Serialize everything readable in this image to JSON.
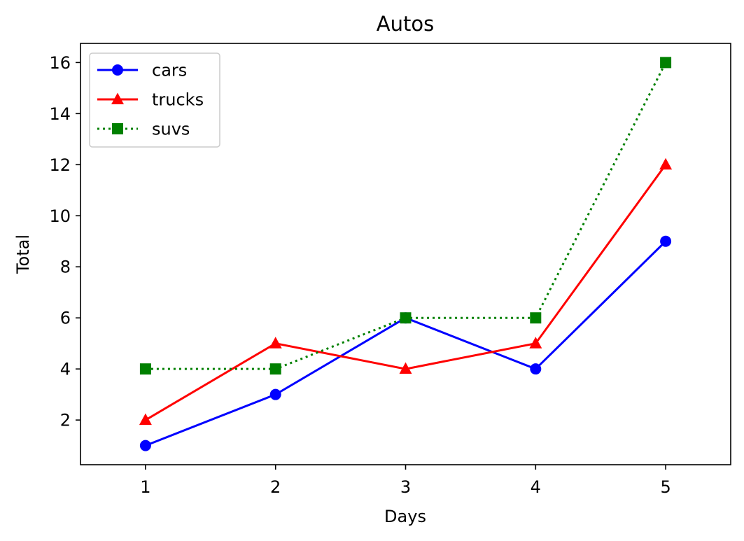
{
  "chart_data": {
    "type": "line",
    "title": "Autos",
    "xlabel": "Days",
    "ylabel": "Total",
    "x": [
      1,
      2,
      3,
      4,
      5
    ],
    "xticks": [
      "1",
      "2",
      "3",
      "4",
      "5"
    ],
    "yticks": [
      "2",
      "4",
      "6",
      "8",
      "10",
      "12",
      "14",
      "16"
    ],
    "xlim": [
      0.5,
      5.5
    ],
    "ylim": [
      0.25,
      16.75
    ],
    "grid": false,
    "legend_position": "top-left",
    "series": [
      {
        "name": "cars",
        "values": [
          1,
          3,
          6,
          4,
          9
        ],
        "color": "#0000ff",
        "marker": "circle",
        "line_style": "solid"
      },
      {
        "name": "trucks",
        "values": [
          2,
          5,
          4,
          5,
          12
        ],
        "color": "#ff0000",
        "marker": "triangle",
        "line_style": "solid"
      },
      {
        "name": "suvs",
        "values": [
          4,
          4,
          6,
          6,
          16
        ],
        "color": "#008000",
        "marker": "square",
        "line_style": "dotted"
      }
    ]
  }
}
